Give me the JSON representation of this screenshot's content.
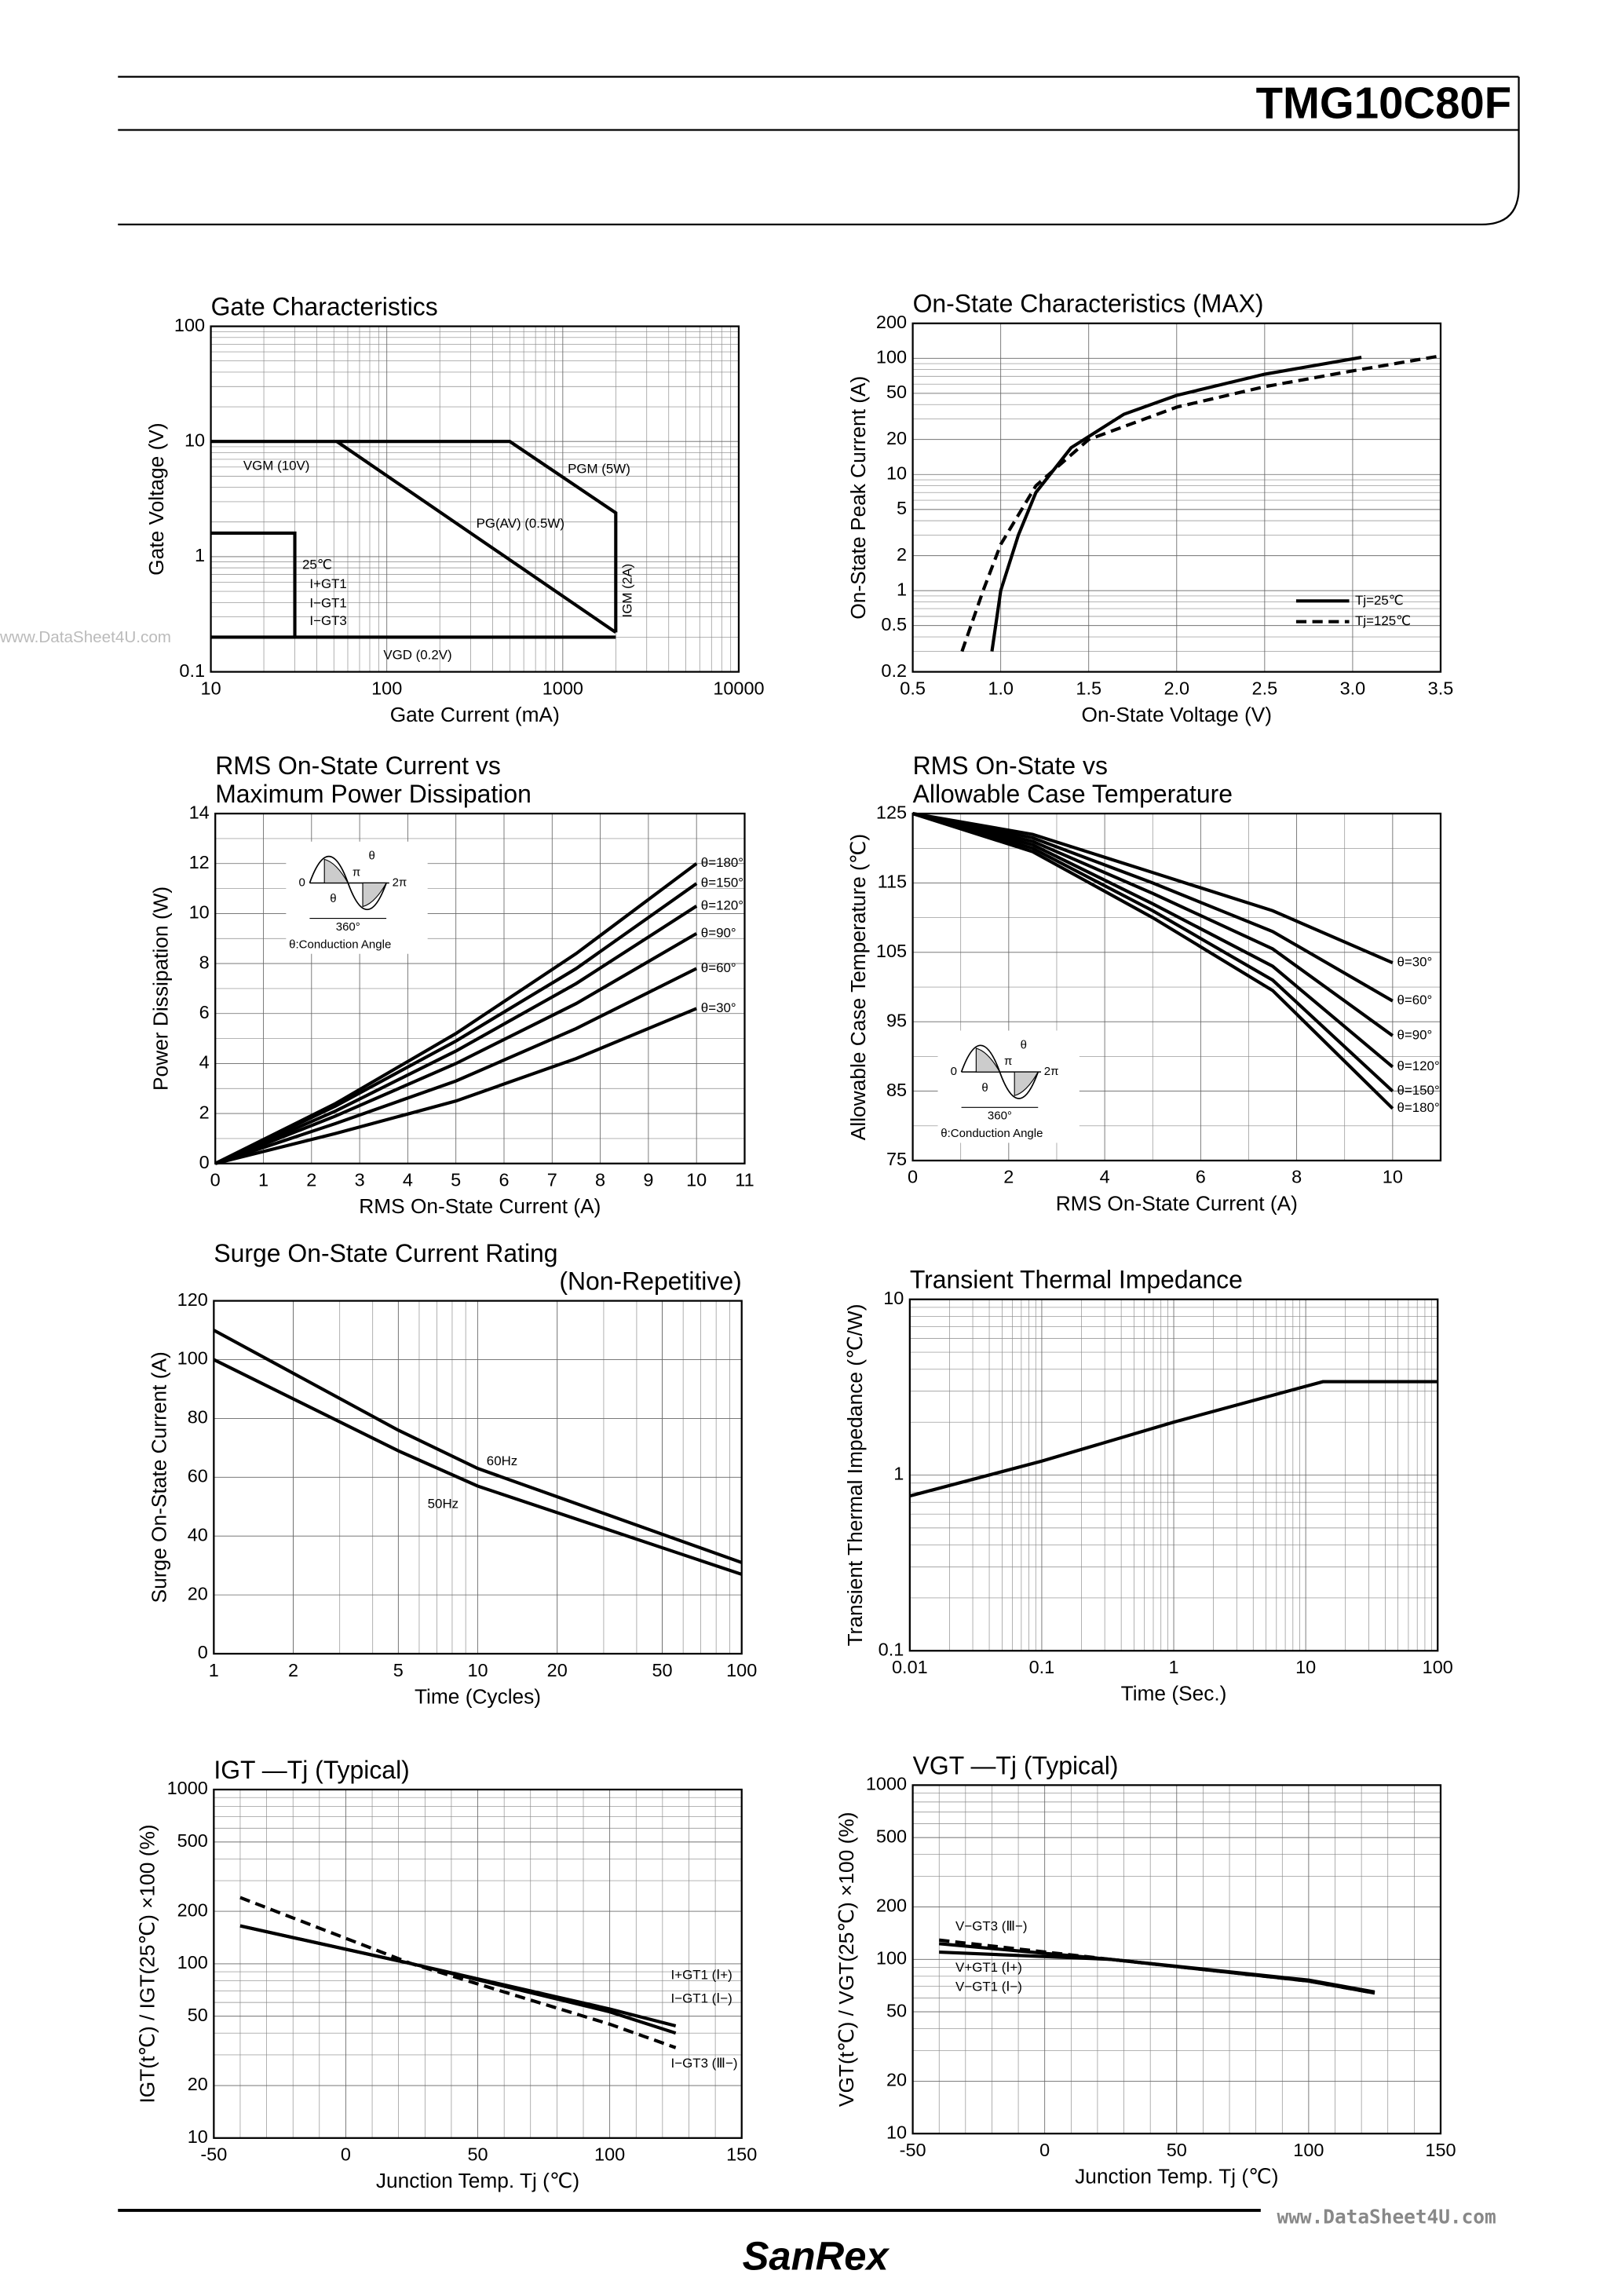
{
  "header": {
    "title": "TMG10C80F"
  },
  "footer": {
    "brand": "SanRex"
  },
  "watermarks": [
    "www.DataSheet4U.com",
    "www.DataSheet4U.com"
  ],
  "chart_data": [
    {
      "type": "line",
      "title": [
        "Gate Characteristics"
      ],
      "xlabel": "Gate Current (mA)",
      "ylabel": "Gate Voltage (V)",
      "xlog": true,
      "ylog": true,
      "xlim": [
        10,
        10000
      ],
      "ylim": [
        0.1,
        100
      ],
      "xticks": [
        10,
        100,
        1000,
        10000
      ],
      "yticks": [
        0.1,
        1,
        10,
        100
      ],
      "grid": true,
      "series": [
        {
          "color": "#000",
          "x": [
            10,
            500,
            2000,
            2000
          ],
          "values": [
            10,
            10,
            2.4,
            0.22
          ]
        },
        {
          "color": "#000",
          "x": [
            52,
            2000
          ],
          "values": [
            10,
            0.22
          ]
        },
        {
          "color": "#000",
          "x": [
            10,
            2000
          ],
          "values": [
            0.2,
            0.2
          ]
        },
        {
          "color": "#000",
          "x": [
            10,
            30,
            30
          ],
          "values": [
            1.6,
            1.6,
            0.2
          ]
        }
      ],
      "annotations": [
        "VGM (10V)",
        "PGM (5W)",
        "PG(AV) (0.5W)",
        "IGM (2A)",
        "VGD (0.2V)",
        "25℃",
        "I+GT1",
        "I−GT1",
        "I−GT3"
      ]
    },
    {
      "type": "line",
      "title": [
        "On-State Characteristics (MAX)"
      ],
      "xlabel": "On-State Voltage (V)",
      "ylabel": "On-State Peak Current (A)",
      "ylog": true,
      "xlim": [
        0.5,
        3.5
      ],
      "ylim": [
        0.2,
        200
      ],
      "xticks": [
        0.5,
        {
          "value": 1,
          "label": "1.0"
        },
        1.5,
        {
          "value": 2,
          "label": "2.0"
        },
        2.5,
        {
          "value": 3,
          "label": "3.0"
        },
        3.5
      ],
      "yticks": [
        0.2,
        0.5,
        1,
        2,
        5,
        10,
        20,
        50,
        100,
        200
      ],
      "grid": true,
      "legend": "lower right",
      "series": [
        {
          "name": "Tj=25℃",
          "color": "#000",
          "x": [
            0.95,
            1.0,
            1.1,
            1.2,
            1.4,
            1.7,
            2.0,
            2.5,
            3.05
          ],
          "values": [
            0.3,
            1,
            3,
            7,
            17,
            33,
            48,
            73,
            102
          ]
        },
        {
          "name": "Tj=125℃",
          "color": "#000",
          "dash": true,
          "x": [
            0.78,
            0.9,
            1.0,
            1.2,
            1.5,
            2.0,
            2.5,
            3.0,
            3.5
          ],
          "values": [
            0.3,
            1,
            2.5,
            8,
            20,
            38,
            57,
            78,
            105
          ]
        }
      ]
    },
    {
      "type": "line",
      "title": [
        "RMS On-State Current vs",
        "Maximum Power Dissipation"
      ],
      "xlabel": "RMS On-State Current (A)",
      "ylabel": "Power Dissipation (W)",
      "xlim": [
        0,
        11
      ],
      "ylim": [
        0,
        14
      ],
      "xticks": [
        0,
        1,
        2,
        3,
        4,
        5,
        6,
        7,
        8,
        9,
        10,
        11
      ],
      "yticks": [
        0,
        2,
        4,
        6,
        8,
        10,
        12,
        14
      ],
      "grid": true,
      "series": [
        {
          "name": "θ=180°",
          "color": "#000",
          "x": [
            0,
            2.5,
            5,
            7.5,
            10
          ],
          "values": [
            0,
            2.4,
            5.2,
            8.4,
            12
          ]
        },
        {
          "name": "θ=150°",
          "color": "#000",
          "x": [
            0,
            2.5,
            5,
            7.5,
            10
          ],
          "values": [
            0,
            2.3,
            4.9,
            7.8,
            11.2
          ]
        },
        {
          "name": "θ=120°",
          "color": "#000",
          "x": [
            0,
            2.5,
            5,
            7.5,
            10
          ],
          "values": [
            0,
            2.1,
            4.5,
            7.2,
            10.3
          ]
        },
        {
          "name": "θ=90°",
          "color": "#000",
          "x": [
            0,
            2.5,
            5,
            7.5,
            10
          ],
          "values": [
            0,
            1.9,
            4.0,
            6.4,
            9.2
          ]
        },
        {
          "name": "θ=60°",
          "color": "#000",
          "x": [
            0,
            2.5,
            5,
            7.5,
            10
          ],
          "values": [
            0,
            1.6,
            3.3,
            5.4,
            7.8
          ]
        },
        {
          "name": "θ=30°",
          "color": "#000",
          "x": [
            0,
            2.5,
            5,
            7.5,
            10
          ],
          "values": [
            0,
            1.2,
            2.5,
            4.2,
            6.2
          ]
        }
      ],
      "inset": [
        "0",
        "π",
        "2π",
        "θ",
        "θ",
        "360°",
        "θ:Conduction Angle"
      ]
    },
    {
      "type": "line",
      "title": [
        "RMS On-State vs",
        "Allowable Case Temperature"
      ],
      "xlabel": "RMS On-State Current (A)",
      "ylabel": "Allowable Case Temperature (℃)",
      "xlim": [
        0,
        11
      ],
      "ylim": [
        75,
        125
      ],
      "xticks": [
        0,
        2,
        4,
        6,
        8,
        10
      ],
      "yticks": [
        75,
        85,
        95,
        105,
        115,
        125
      ],
      "grid": true,
      "series": [
        {
          "name": "θ=30°",
          "color": "#000",
          "x": [
            0,
            2.5,
            5,
            7.5,
            10
          ],
          "values": [
            125,
            122,
            116.5,
            111,
            103.5
          ]
        },
        {
          "name": "θ=60°",
          "color": "#000",
          "x": [
            0,
            2.5,
            5,
            7.5,
            10
          ],
          "values": [
            125,
            121.5,
            115,
            108,
            98
          ]
        },
        {
          "name": "θ=90°",
          "color": "#000",
          "x": [
            0,
            2.5,
            5,
            7.5,
            10
          ],
          "values": [
            125,
            121,
            113.5,
            105.5,
            93
          ]
        },
        {
          "name": "θ=120°",
          "color": "#000",
          "x": [
            0,
            2.5,
            5,
            7.5,
            10
          ],
          "values": [
            125,
            120.5,
            112,
            103,
            88.5
          ]
        },
        {
          "name": "θ=150°",
          "color": "#000",
          "x": [
            0,
            2.5,
            5,
            7.5,
            10
          ],
          "values": [
            125,
            120,
            111,
            101,
            85
          ]
        },
        {
          "name": "θ=180°",
          "color": "#000",
          "x": [
            0,
            2.5,
            5,
            7.5,
            10
          ],
          "values": [
            125,
            119.5,
            110,
            99.5,
            82.5
          ]
        }
      ],
      "inset": [
        "0",
        "π",
        "2π",
        "θ",
        "θ",
        "360°",
        "θ:Conduction Angle"
      ]
    },
    {
      "type": "line",
      "title": [
        "Surge On-State Current Rating",
        "(Non-Repetitive)"
      ],
      "xlabel": "Time (Cycles)",
      "ylabel": "Surge On-State Current (A)",
      "xlog": true,
      "xlim": [
        1,
        100
      ],
      "ylim": [
        0,
        120
      ],
      "xticks": [
        1,
        2,
        5,
        10,
        20,
        50,
        100
      ],
      "yticks": [
        0,
        20,
        40,
        60,
        80,
        100,
        120
      ],
      "grid": true,
      "series": [
        {
          "name": "60Hz",
          "color": "#000",
          "x": [
            1,
            5,
            10,
            100
          ],
          "values": [
            110,
            76,
            63,
            31
          ]
        },
        {
          "name": "50Hz",
          "color": "#000",
          "x": [
            1,
            5,
            10,
            100
          ],
          "values": [
            100,
            69,
            57,
            27
          ]
        }
      ]
    },
    {
      "type": "line",
      "title": [
        "Transient Thermal Impedance"
      ],
      "xlabel": "Time (Sec.)",
      "ylabel": "Transient Thermal Impedance (℃/W)",
      "xlog": true,
      "ylog": true,
      "xlim": [
        0.01,
        100
      ],
      "ylim": [
        0.1,
        10
      ],
      "xticks": [
        0.01,
        0.1,
        1,
        10,
        100
      ],
      "yticks": [
        0.1,
        1,
        10
      ],
      "grid": true,
      "series": [
        {
          "color": "#000",
          "x": [
            0.01,
            0.1,
            1,
            10,
            13.5,
            100
          ],
          "values": [
            0.76,
            1.2,
            2.0,
            3.2,
            3.4,
            3.4
          ]
        }
      ]
    },
    {
      "type": "line",
      "title": [
        "IGT —Tj (Typical)"
      ],
      "xlabel": "Junction Temp. Tj (℃)",
      "ylabel": "IGT(t℃) / IGT(25℃) ×100 (%)",
      "ylog": true,
      "xlim": [
        -50,
        150
      ],
      "ylim": [
        10,
        1000
      ],
      "xticks": [
        -50,
        0,
        50,
        100,
        150
      ],
      "yticks": [
        10,
        20,
        50,
        100,
        200,
        500,
        1000
      ],
      "grid": true,
      "series": [
        {
          "name": "I+GT1 (Ⅰ+)",
          "color": "#000",
          "x": [
            -40,
            25,
            100,
            125
          ],
          "values": [
            165,
            100,
            53,
            40
          ]
        },
        {
          "name": "I−GT1 (Ⅰ−)",
          "color": "#000",
          "x": [
            -40,
            25,
            100,
            125
          ],
          "values": [
            165,
            100,
            55,
            44
          ]
        },
        {
          "name": "I−GT3 (Ⅲ−)",
          "color": "#000",
          "dash": true,
          "x": [
            -40,
            25,
            100,
            125
          ],
          "values": [
            240,
            100,
            45,
            33
          ]
        }
      ]
    },
    {
      "type": "line",
      "title": [
        "VGT —Tj (Typical)"
      ],
      "xlabel": "Junction Temp. Tj (℃)",
      "ylabel": "VGT(t℃) / VGT(25℃) ×100 (%)",
      "ylog": true,
      "xlim": [
        -50,
        150
      ],
      "ylim": [
        10,
        1000
      ],
      "xticks": [
        -50,
        0,
        50,
        100,
        150
      ],
      "yticks": [
        10,
        20,
        50,
        100,
        200,
        500,
        1000
      ],
      "grid": true,
      "series": [
        {
          "name": "V−GT3 (Ⅲ−)",
          "color": "#000",
          "dash": true,
          "x": [
            -40,
            25,
            100,
            125
          ],
          "values": [
            129,
            100,
            75,
            64
          ]
        },
        {
          "name": "V+GT1 (Ⅰ+)",
          "color": "#000",
          "x": [
            -40,
            25,
            100,
            125
          ],
          "values": [
            123,
            100,
            75,
            64
          ]
        },
        {
          "name": "V−GT1 (Ⅰ−)",
          "color": "#000",
          "x": [
            -40,
            25,
            100,
            125
          ],
          "values": [
            110,
            100,
            76,
            65
          ]
        }
      ]
    }
  ]
}
